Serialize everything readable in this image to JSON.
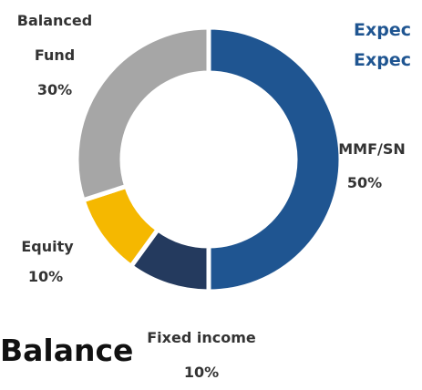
{
  "chart_data": {
    "type": "pie",
    "donut": true,
    "title": "Balance",
    "annotations": [
      "Expec",
      "Expec"
    ],
    "categories": [
      "MMF/SN",
      "Fixed income",
      "Equity",
      "Balanced Fund"
    ],
    "values": [
      50,
      10,
      10,
      30
    ],
    "value_labels": [
      "50%",
      "10%",
      "10%",
      "30%"
    ],
    "colors": [
      "#1f5591",
      "#243a5e",
      "#f5b800",
      "#a6a6a6"
    ]
  }
}
